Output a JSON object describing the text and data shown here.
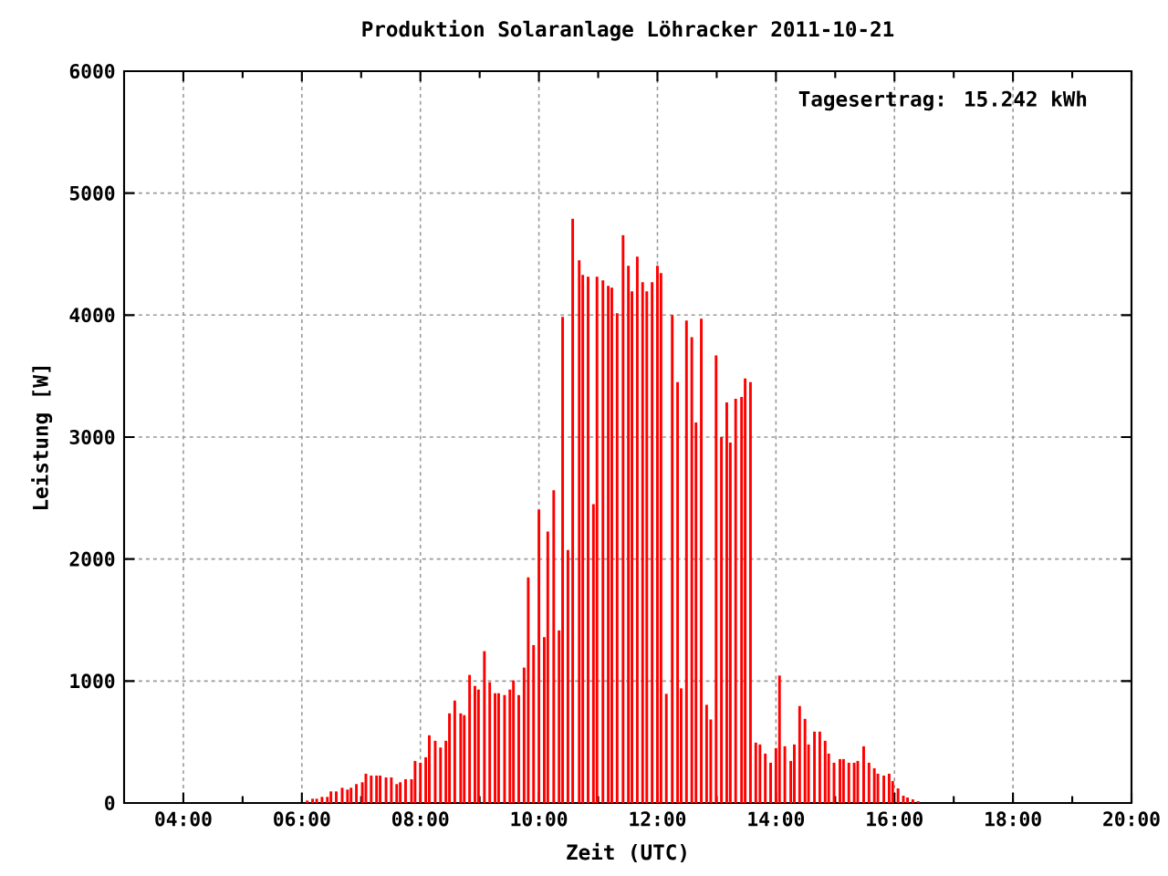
{
  "chart_data": {
    "type": "bar",
    "title": "Produktion Solaranlage Löhracker 2011-10-21",
    "xlabel": "Zeit (UTC)",
    "ylabel": "Leistung [W]",
    "annotations": [
      "Tagesertrag: 15.242 kWh"
    ],
    "x": [
      6.09,
      6.18,
      6.25,
      6.34,
      6.43,
      6.49,
      6.58,
      6.68,
      6.77,
      6.83,
      6.92,
      7.02,
      7.08,
      7.17,
      7.26,
      7.32,
      7.42,
      7.51,
      7.6,
      7.66,
      7.75,
      7.85,
      7.91,
      8.0,
      8.09,
      8.15,
      8.25,
      8.34,
      8.43,
      8.49,
      8.58,
      8.68,
      8.74,
      8.83,
      8.92,
      8.98,
      9.08,
      9.17,
      9.26,
      9.32,
      9.42,
      9.51,
      9.57,
      9.66,
      9.75,
      9.82,
      9.91,
      10.0,
      10.09,
      10.15,
      10.25,
      10.34,
      10.4,
      10.49,
      10.57,
      10.68,
      10.74,
      10.83,
      10.92,
      10.98,
      11.08,
      11.17,
      11.23,
      11.32,
      11.42,
      11.51,
      11.57,
      11.66,
      11.75,
      11.82,
      11.91,
      12.0,
      12.06,
      12.15,
      12.25,
      12.34,
      12.4,
      12.49,
      12.58,
      12.65,
      12.74,
      12.83,
      12.9,
      12.99,
      13.08,
      13.17,
      13.23,
      13.32,
      13.42,
      13.48,
      13.57,
      13.66,
      13.73,
      13.82,
      13.91,
      14.0,
      14.06,
      14.15,
      14.25,
      14.31,
      14.4,
      14.49,
      14.55,
      14.65,
      14.74,
      14.83,
      14.89,
      14.98,
      15.08,
      15.14,
      15.23,
      15.32,
      15.38,
      15.48,
      15.57,
      15.66,
      15.72,
      15.82,
      15.91,
      15.97,
      16.06,
      16.15,
      16.22,
      16.31,
      16.4
    ],
    "values": [
      20,
      35,
      35,
      50,
      50,
      95,
      95,
      125,
      110,
      125,
      155,
      170,
      240,
      225,
      225,
      225,
      210,
      210,
      155,
      170,
      195,
      195,
      345,
      330,
      375,
      555,
      510,
      455,
      510,
      735,
      840,
      735,
      720,
      1050,
      960,
      930,
      1245,
      990,
      900,
      900,
      885,
      930,
      1005,
      885,
      1110,
      1850,
      1295,
      2405,
      1360,
      2225,
      2565,
      1415,
      3985,
      2075,
      4790,
      4450,
      4330,
      4315,
      2450,
      4315,
      4285,
      4240,
      4225,
      4015,
      4655,
      4405,
      4195,
      4480,
      4270,
      4195,
      4270,
      4405,
      4345,
      895,
      4000,
      3450,
      940,
      3955,
      3820,
      3120,
      3970,
      805,
      685,
      3670,
      3000,
      3285,
      2955,
      3315,
      3330,
      3480,
      3450,
      495,
      480,
      405,
      330,
      450,
      1045,
      465,
      345,
      480,
      795,
      690,
      480,
      585,
      585,
      510,
      405,
      330,
      360,
      360,
      330,
      330,
      345,
      465,
      330,
      285,
      240,
      225,
      240,
      180,
      120,
      60,
      45,
      30,
      15
    ],
    "color": "#ff0000",
    "xlim": [
      3,
      20
    ],
    "xticks": [
      {
        "value": 4,
        "label": "04:00"
      },
      {
        "value": 6,
        "label": "06:00"
      },
      {
        "value": 8,
        "label": "08:00"
      },
      {
        "value": 10,
        "label": "10:00"
      },
      {
        "value": 12,
        "label": "12:00"
      },
      {
        "value": 14,
        "label": "14:00"
      },
      {
        "value": 16,
        "label": "16:00"
      },
      {
        "value": 18,
        "label": "18:00"
      },
      {
        "value": 20,
        "label": "20:00"
      }
    ],
    "ylim": [
      0,
      6000
    ],
    "yticks": [
      0,
      1000,
      2000,
      3000,
      4000,
      5000,
      6000
    ],
    "grid": true
  }
}
